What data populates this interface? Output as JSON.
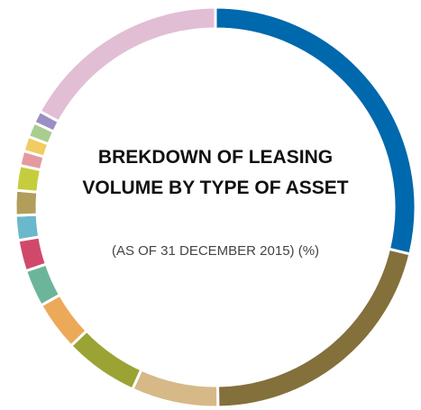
{
  "chart_data": {
    "type": "donut",
    "title": "BREKDOWN OF LEASING VOLUME BY TYPE OF ASSET",
    "subtitle": "(AS OF 31 DECEMBER 2015) (%)",
    "values": [
      28.7,
      21,
      7,
      6,
      4,
      3,
      2.5,
      2,
      2,
      2,
      1.2,
      1.2,
      1.2,
      1,
      17
    ],
    "colors": [
      "#0068ad",
      "#83703b",
      "#d6b987",
      "#9aa334",
      "#eda95a",
      "#6cb59b",
      "#d1496a",
      "#6bb8cc",
      "#b19e5a",
      "#c6cd3d",
      "#e49aa0",
      "#f0cc62",
      "#a9cc8f",
      "#9a8fc4",
      "#e2bed4"
    ]
  }
}
